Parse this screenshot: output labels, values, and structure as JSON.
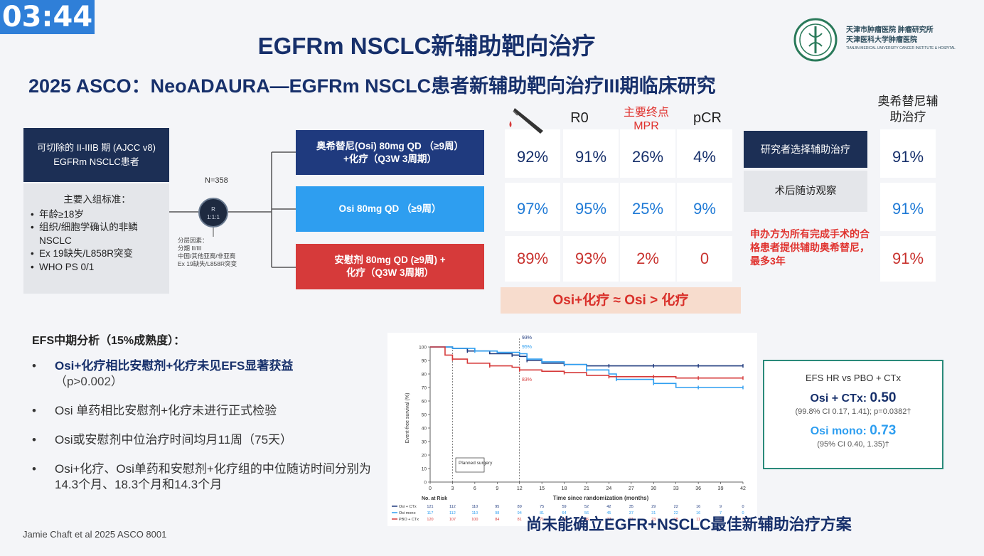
{
  "timer": "03:44",
  "title": "EGFRm NSCLC新辅助靶向治疗",
  "subtitle": "2025 ASCO：NeoADAURA—EGFRm NSCLC患者新辅助靶向治疗III期临床研究",
  "logo": {
    "line1": "天津市肿瘤医院    肿瘤研究所",
    "line2": "天津医科大学肿瘤医院",
    "line3": "TIANJIN MEDICAL UNIVERSITY CANCER INSTITUTE & HOSPITAL"
  },
  "eligibility": "可切除的 II-IIIB 期 (AJCC v8) EGFRm NSCLC患者",
  "criteria": {
    "title": "主要入组标准：",
    "items": [
      "年龄≥18岁",
      "组织/细胞学确认的非鳞NSCLC",
      "Ex 19缺失/L858R突变",
      "WHO PS 0/1"
    ]
  },
  "randomization": {
    "n": "N=358",
    "label": "R",
    "ratio": "1:1:1"
  },
  "stratification": {
    "title": "分层因素：",
    "items": [
      "分期 II/III",
      "中国/其他亚裔/非亚裔",
      "Ex 19缺失/L858R突变"
    ]
  },
  "arms": [
    {
      "line1": "奥希替尼(Osi) 80mg QD （≥9周）",
      "line2": "+化疗（Q3W 3周期）"
    },
    {
      "line1": "Osi 80mg QD （≥9周）",
      "line2": ""
    },
    {
      "line1": "安慰剂 80mg QD (≥9周) +",
      "line2": "化疗（Q3W 3周期）"
    }
  ],
  "table": {
    "headers": {
      "r0": "R0",
      "mpr_note": "主要终点",
      "mpr": "MPR",
      "pcr": "pCR",
      "adjuvant": "奥希替尼辅助治疗"
    },
    "rows": [
      {
        "surgery": "92%",
        "r0": "91%",
        "mpr": "26%",
        "pcr": "4%",
        "adjuvant": "91%"
      },
      {
        "surgery": "97%",
        "r0": "95%",
        "mpr": "25%",
        "pcr": "9%",
        "adjuvant": "91%"
      },
      {
        "surgery": "89%",
        "r0": "93%",
        "mpr": "2%",
        "pcr": "0",
        "adjuvant": "91%"
      }
    ]
  },
  "conclusion": "Osi+化疗 ≈ Osi > 化疗",
  "investigator": {
    "choice": "研究者选择辅助治疗",
    "observe": "术后随访观察"
  },
  "sponsor_note": "申办方为所有完成手术的合格患者提供辅助奥希替尼，最多3年",
  "efs": {
    "title": "EFS中期分析（15%成熟度）：",
    "b1_strong": "Osi+化疗相比安慰剂+化疗未见EFS显著获益",
    "b1_sub": "（p>0.002）",
    "b2": "Osi 单药相比安慰剂+化疗未进行正式检验",
    "b3": "Osi或安慰剂中位治疗时间均月11周（75天）",
    "b4": "Osi+化疗、Osi单药和安慰剂+化疗组的中位随访时间分别为14.3个月、18.3个月和14.3个月"
  },
  "hr": {
    "header": "EFS HR vs PBO + CTx",
    "a_label": "Osi + CTx: ",
    "a_value": "0.50",
    "a_ci": "(99.8% CI 0.17, 1.41); p=0.0382†",
    "b_label": "Osi mono: ",
    "b_value": "0.73",
    "b_ci": "(95% CI 0.40, 1.35)†"
  },
  "chart_data": {
    "type": "line",
    "ylabel": "Event-free survival (%)",
    "xlabel": "Time since randomization (months)",
    "x_ticks": [
      "0",
      "3",
      "6",
      "9",
      "12",
      "15",
      "18",
      "21",
      "24",
      "27",
      "30",
      "33",
      "36",
      "39",
      "42"
    ],
    "y_ticks": [
      "0",
      "10",
      "20",
      "30",
      "40",
      "50",
      "60",
      "70",
      "80",
      "90",
      "100"
    ],
    "ylim": [
      0,
      100
    ],
    "xlim": [
      0,
      42
    ],
    "annotations": [
      "93%",
      "95%",
      "83%",
      "Planned surgery"
    ],
    "risk_title": "No. at Risk",
    "risk_rows": [
      {
        "name": "Osi + CTx",
        "color": "#1f3a7e",
        "values": [
          "121",
          "112",
          "110",
          "95",
          "89",
          "75",
          "59",
          "52",
          "42",
          "35",
          "29",
          "22",
          "16",
          "9",
          "0"
        ]
      },
      {
        "name": "Osi mono",
        "color": "#2e9ef0",
        "values": [
          "117",
          "112",
          "110",
          "98",
          "94",
          "81",
          "64",
          "56",
          "45",
          "37",
          "31",
          "22",
          "16",
          "7",
          "0"
        ]
      },
      {
        "name": "PBO + CTx",
        "color": "#d63a3a",
        "values": [
          "120",
          "107",
          "100",
          "84",
          "81",
          "71",
          "54",
          "46",
          "37",
          "31",
          "23",
          "18",
          "11",
          "6",
          "0"
        ]
      }
    ],
    "series": [
      {
        "name": "Osi + CTx",
        "color": "#1f3a7e",
        "x": [
          0,
          3,
          5,
          8,
          11,
          12,
          13,
          15,
          18,
          21,
          24,
          27,
          30,
          33,
          36,
          39,
          42
        ],
        "y": [
          100,
          99,
          97,
          95,
          94,
          93,
          90,
          88,
          87,
          86,
          86,
          86,
          86,
          86,
          86,
          86,
          86
        ]
      },
      {
        "name": "Osi mono",
        "color": "#2e9ef0",
        "x": [
          0,
          3,
          6,
          9,
          12,
          13,
          15,
          18,
          21,
          24,
          25,
          27,
          30,
          33,
          36,
          39,
          42
        ],
        "y": [
          100,
          99,
          97,
          96,
          95,
          91,
          89,
          87,
          83,
          80,
          76,
          76,
          73,
          70,
          70,
          70,
          70
        ]
      },
      {
        "name": "PBO + CTx",
        "color": "#d63a3a",
        "x": [
          0,
          2,
          3,
          5,
          8,
          11,
          12,
          15,
          18,
          21,
          24,
          27,
          30,
          33,
          36,
          39,
          42
        ],
        "y": [
          100,
          94,
          91,
          88,
          86,
          85,
          83,
          82,
          81,
          79,
          78,
          78,
          78,
          77,
          77,
          77,
          77
        ]
      }
    ]
  }
}
